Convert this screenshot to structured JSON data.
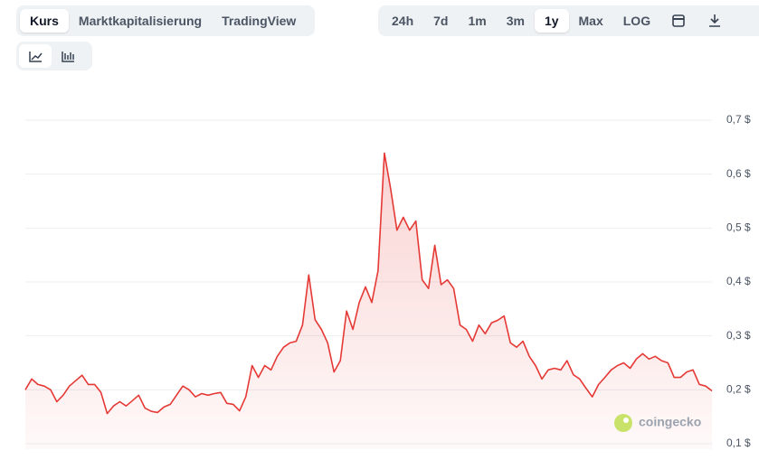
{
  "ui": {
    "tabs": [
      "Kurs",
      "Marktkapitalisierung",
      "TradingView"
    ],
    "ranges": [
      "24h",
      "7d",
      "1m",
      "3m",
      "1y",
      "Max",
      "LOG"
    ],
    "watermark": "coingecko"
  },
  "chart_data": {
    "type": "line",
    "color": "#e53935",
    "grid": true,
    "ylim": [
      0.1,
      0.7
    ],
    "yticks": [
      {
        "value": 0.1,
        "label": "0,1 $"
      },
      {
        "value": 0.2,
        "label": "0,2 $"
      },
      {
        "value": 0.3,
        "label": "0,3 $"
      },
      {
        "value": 0.4,
        "label": "0,4 $"
      },
      {
        "value": 0.5,
        "label": "0,5 $"
      },
      {
        "value": 0.6,
        "label": "0,6 $"
      },
      {
        "value": 0.7,
        "label": "0,7 $"
      }
    ],
    "values": [
      0.2,
      0.22,
      0.21,
      0.207,
      0.2,
      0.178,
      0.19,
      0.207,
      0.217,
      0.227,
      0.21,
      0.21,
      0.195,
      0.156,
      0.17,
      0.178,
      0.17,
      0.18,
      0.19,
      0.166,
      0.16,
      0.158,
      0.168,
      0.173,
      0.19,
      0.207,
      0.2,
      0.187,
      0.193,
      0.19,
      0.193,
      0.195,
      0.175,
      0.173,
      0.161,
      0.187,
      0.245,
      0.223,
      0.245,
      0.237,
      0.262,
      0.279,
      0.287,
      0.29,
      0.32,
      0.413,
      0.33,
      0.312,
      0.287,
      0.233,
      0.254,
      0.346,
      0.312,
      0.362,
      0.391,
      0.362,
      0.421,
      0.639,
      0.572,
      0.496,
      0.52,
      0.496,
      0.513,
      0.404,
      0.388,
      0.468,
      0.395,
      0.404,
      0.388,
      0.32,
      0.312,
      0.29,
      0.32,
      0.304,
      0.324,
      0.329,
      0.337,
      0.287,
      0.279,
      0.29,
      0.262,
      0.245,
      0.22,
      0.237,
      0.24,
      0.237,
      0.254,
      0.228,
      0.22,
      0.203,
      0.187,
      0.21,
      0.223,
      0.237,
      0.245,
      0.25,
      0.24,
      0.257,
      0.267,
      0.257,
      0.262,
      0.254,
      0.25,
      0.223,
      0.223,
      0.233,
      0.237,
      0.21,
      0.207,
      0.198
    ]
  }
}
